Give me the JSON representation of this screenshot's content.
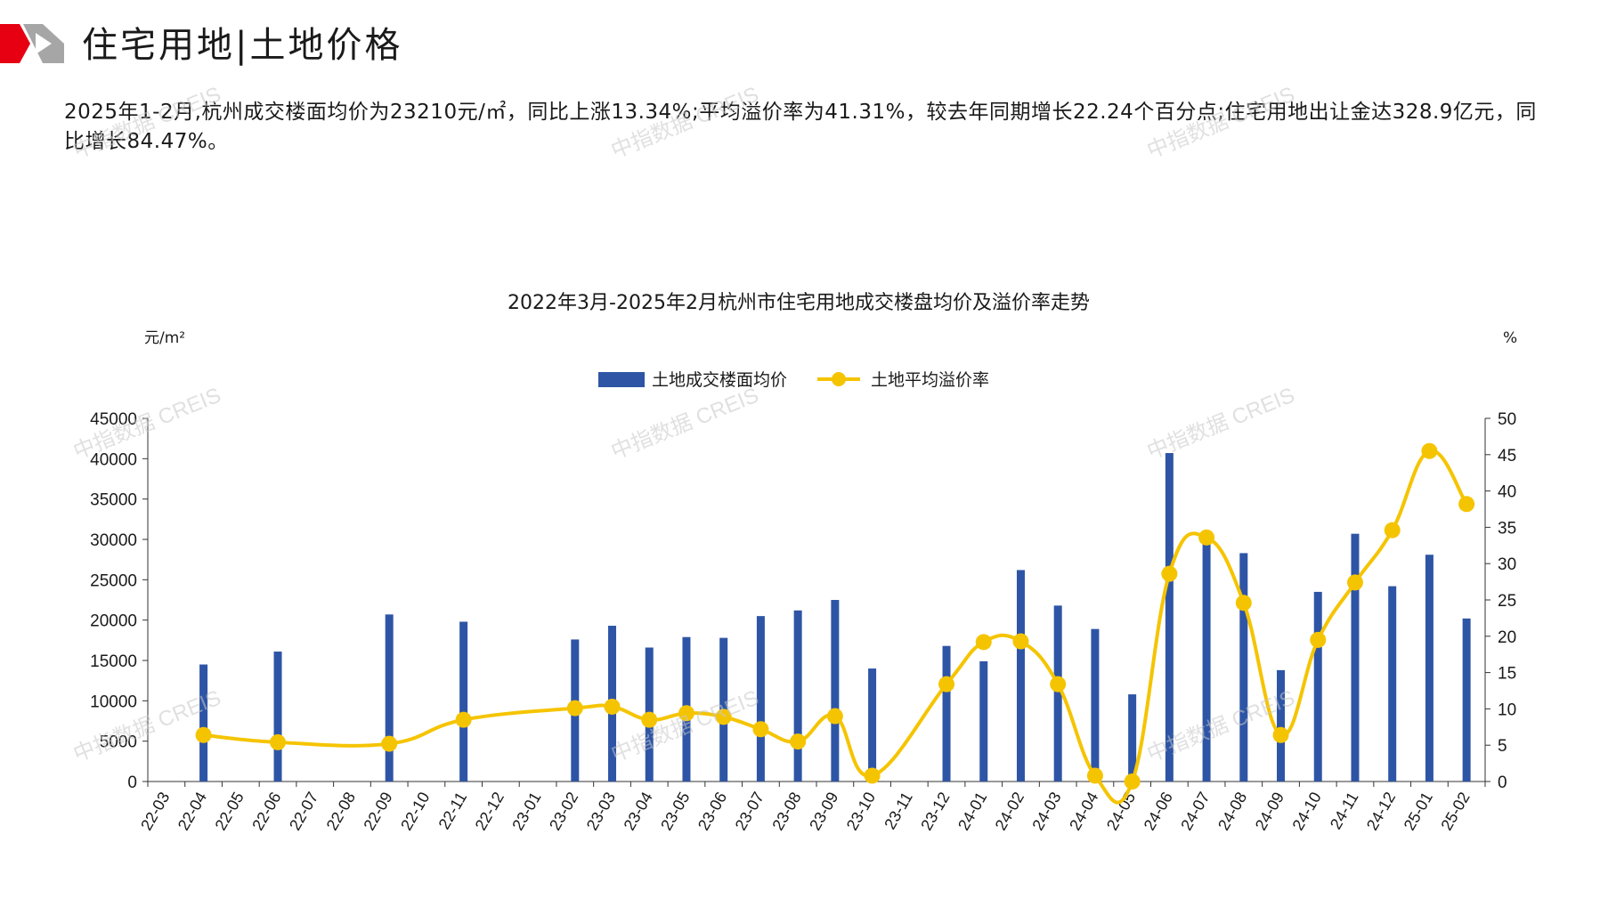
{
  "page": {
    "title": "住宅用地|土地价格",
    "summary": "2025年1-2月,杭州成交楼面均价为23210元/㎡，同比上涨13.34%;平均溢价率为41.31%，较去年同期增长22.24个百分点;住宅用地出让金达328.9亿元，同比增长84.47%。",
    "watermark": "中指数据 CREIS",
    "colors": {
      "logo_red": "#e60012",
      "logo_gray": "#9a9a9a",
      "bar": "#2e55a5",
      "line": "#f5c400"
    }
  },
  "chart_data": {
    "type": "bar",
    "title": "2022年3月-2025年2月杭州市住宅用地成交楼盘均价及溢价率走势",
    "y_left_unit": "元/m²",
    "y_right_unit": "%",
    "y_left_ticks": [
      "0",
      "5000",
      "10000",
      "15000",
      "20000",
      "25000",
      "30000",
      "35000",
      "40000",
      "45000"
    ],
    "y_right_ticks": [
      "0",
      "5",
      "10",
      "15",
      "20",
      "25",
      "30",
      "35",
      "40",
      "45",
      "50"
    ],
    "ylim_left": [
      0,
      45000
    ],
    "ylim_right": [
      0,
      50
    ],
    "legend_placement": "top-center",
    "grid": false,
    "categories": [
      "22-03",
      "22-04",
      "22-05",
      "22-06",
      "22-07",
      "22-08",
      "22-09",
      "22-10",
      "22-11",
      "22-12",
      "23-01",
      "23-02",
      "23-03",
      "23-04",
      "23-05",
      "23-06",
      "23-07",
      "23-08",
      "23-09",
      "23-10",
      "23-11",
      "23-12",
      "24-01",
      "24-02",
      "24-03",
      "24-04",
      "24-05",
      "24-06",
      "24-07",
      "24-08",
      "24-09",
      "24-10",
      "24-11",
      "24-12",
      "25-01",
      "25-02"
    ],
    "series": [
      {
        "name": "土地成交楼面均价",
        "kind": "bar",
        "axis": "left",
        "values": [
          null,
          14500,
          null,
          16100,
          null,
          null,
          20700,
          null,
          19800,
          null,
          null,
          17600,
          19300,
          16600,
          17900,
          17800,
          20500,
          21200,
          22500,
          14000,
          null,
          16800,
          14900,
          26200,
          21800,
          18900,
          10800,
          40700,
          30100,
          28300,
          13800,
          23500,
          30700,
          24200,
          28100,
          20200
        ]
      },
      {
        "name": "土地平均溢价率",
        "kind": "line",
        "axis": "right",
        "values": [
          null,
          6.4,
          null,
          5.4,
          null,
          null,
          5.2,
          null,
          8.5,
          null,
          null,
          10.1,
          10.3,
          8.5,
          9.4,
          8.9,
          7.2,
          5.5,
          9.0,
          0.8,
          null,
          13.4,
          19.2,
          19.3,
          13.4,
          0.8,
          0.0,
          28.6,
          33.6,
          24.6,
          6.4,
          19.5,
          27.4,
          34.6,
          45.5,
          38.2
        ]
      }
    ]
  }
}
